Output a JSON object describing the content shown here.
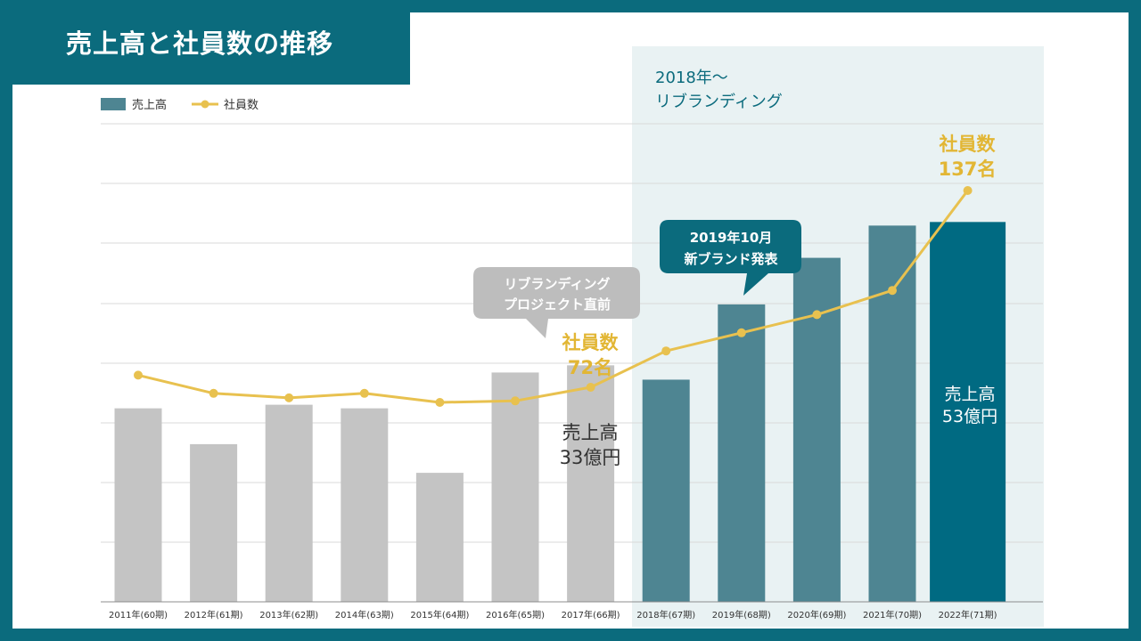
{
  "page_title": "売上高と社員数の推移",
  "colors": {
    "frame": "#0b6b7d",
    "bar_before": "#c4c4c4",
    "bar_after": "#4e8592",
    "bar_highlight": "#006a82",
    "line": "#e8c14f",
    "highlight_region": "#e9f2f3",
    "callout_gray": "#bdbdbd",
    "callout_teal": "#0b6b7d"
  },
  "legend": {
    "bar_label": "売上高",
    "line_label": "社員数"
  },
  "rebrand_region": {
    "line1": "2018年～",
    "line2": "リブランディング"
  },
  "callouts": {
    "gray": {
      "line1": "リブランディング",
      "line2": "プロジェクト直前"
    },
    "teal": {
      "line1": "2019年10月",
      "line2": "新ブランド発表"
    }
  },
  "annotations": {
    "employees_2017": {
      "line1": "社員数",
      "line2": "72名"
    },
    "sales_2017": {
      "line1": "売上高",
      "line2": "33億円"
    },
    "employees_2022": {
      "line1": "社員数",
      "line2": "137名"
    },
    "sales_2022": {
      "line1": "売上高",
      "line2": "53億円"
    }
  },
  "chart_data": {
    "type": "bar+line",
    "title": "売上高と社員数の推移",
    "categories": [
      "2011年(60期)",
      "2012年(61期)",
      "2013年(62期)",
      "2014年(63期)",
      "2015年(64期)",
      "2016年(65期)",
      "2017年(66期)",
      "2018年(67期)",
      "2019年(68期)",
      "2020年(69期)",
      "2021年(70期)",
      "2022年(71期)"
    ],
    "series": [
      {
        "name": "売上高",
        "type": "bar",
        "unit": "億円",
        "values": [
          27,
          22,
          27.5,
          27,
          18,
          32,
          33,
          31,
          41.5,
          48,
          52.5,
          53
        ]
      },
      {
        "name": "社員数",
        "type": "line",
        "unit": "名",
        "values": [
          76,
          70,
          68.5,
          70,
          67,
          67.5,
          72,
          84,
          90,
          96,
          104,
          137
        ]
      }
    ],
    "grid": true,
    "legend": "top-left",
    "highlight_from_category": "2018年(67期)"
  }
}
